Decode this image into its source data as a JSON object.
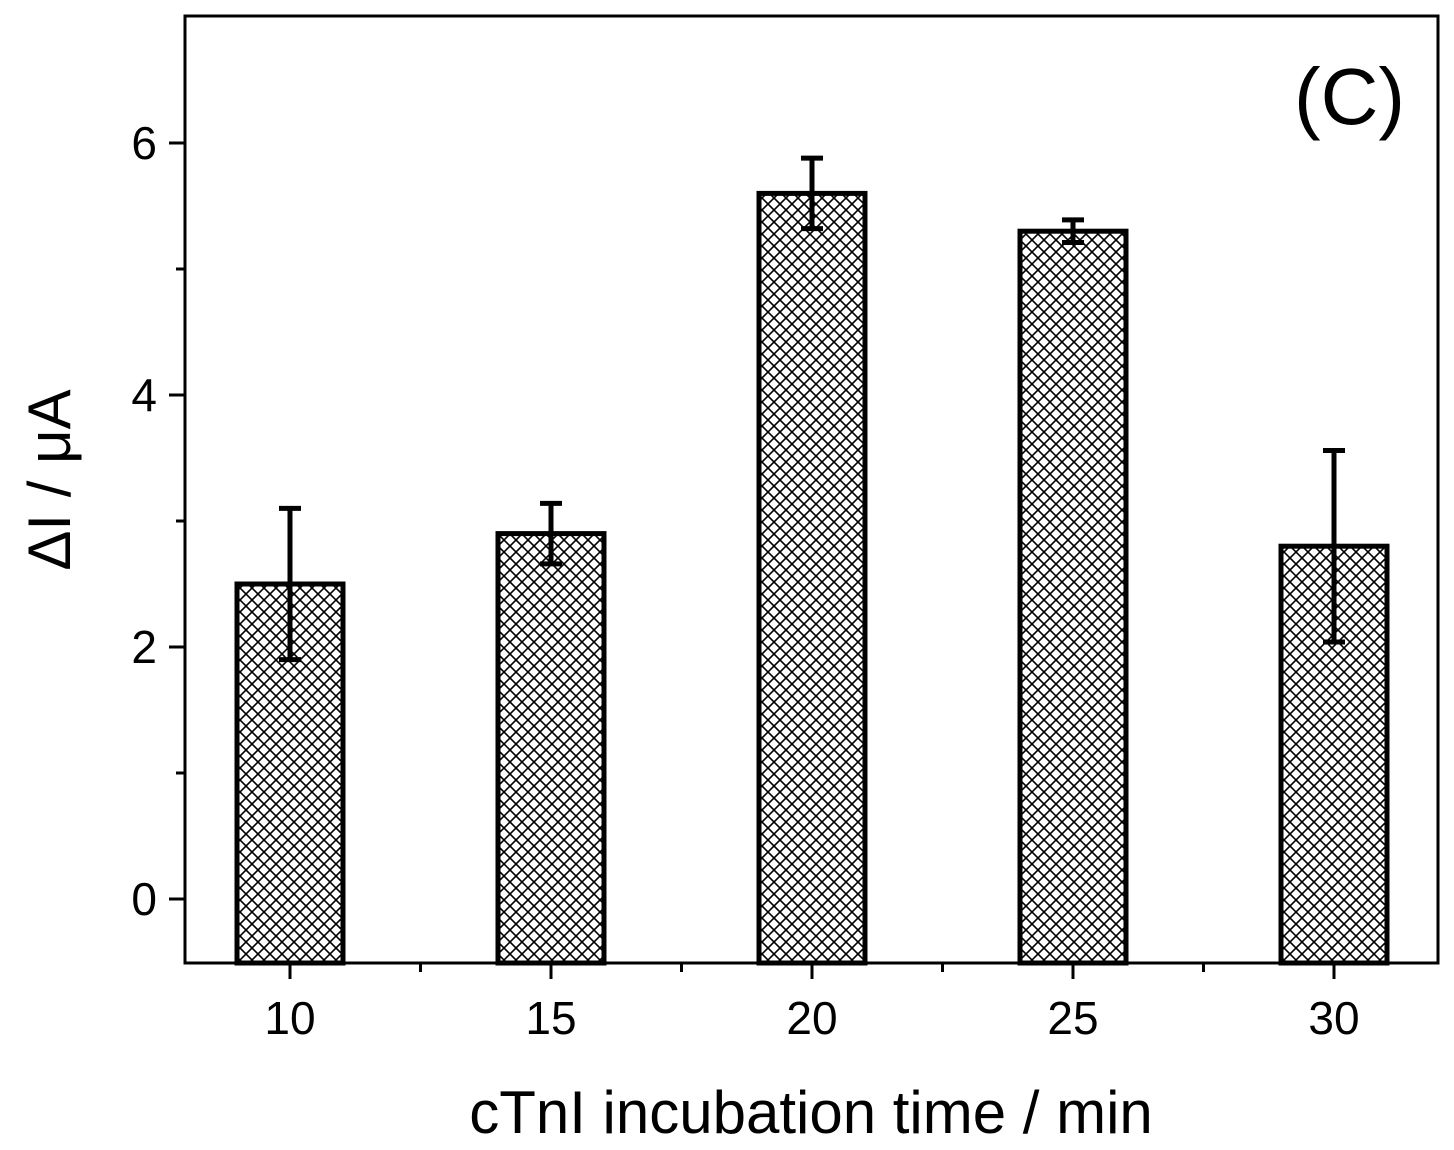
{
  "chart_data": {
    "type": "bar",
    "title": "",
    "panel_label": "(C)",
    "xlabel": "cTnI incubation time / min",
    "ylabel": "ΔI / μA",
    "categories": [
      "10",
      "15",
      "20",
      "25",
      "30"
    ],
    "values": [
      2.5,
      2.9,
      5.6,
      5.3,
      2.8
    ],
    "errors": [
      0.6,
      0.24,
      0.28,
      0.09,
      0.76
    ],
    "ylim": [
      -0.5,
      7.0
    ],
    "yticks_major": [
      0,
      2,
      4,
      6
    ],
    "yticks_minor": [
      1,
      3,
      5
    ],
    "bar_pattern": "crosshatch",
    "bar_color": "#000000",
    "grid": false
  }
}
